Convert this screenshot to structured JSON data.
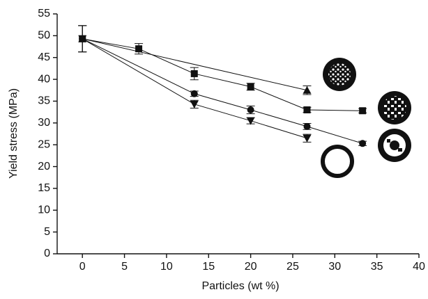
{
  "chart_data": {
    "type": "line",
    "xlabel": "Particles (wt %)",
    "ylabel": "Yield stress (MPa)",
    "xlim": [
      -3,
      40
    ],
    "ylim": [
      0,
      55
    ],
    "xticks": [
      0,
      5,
      10,
      15,
      20,
      25,
      30,
      35,
      40
    ],
    "yticks": [
      0,
      5,
      10,
      15,
      20,
      25,
      30,
      35,
      40,
      45,
      50,
      55
    ],
    "series": [
      {
        "marker": "triangle-up",
        "color": "#111111",
        "x": [
          0,
          26.7
        ],
        "values": [
          49.3,
          37.5
        ],
        "errors": [
          3,
          1
        ]
      },
      {
        "marker": "square",
        "color": "#111111",
        "x": [
          0,
          6.7,
          13.3,
          20,
          26.7,
          33.3
        ],
        "values": [
          49.3,
          47,
          41.3,
          38.3,
          33,
          32.8
        ],
        "errors": [
          3,
          1.2,
          1.4,
          0.8,
          0.6,
          0.5
        ]
      },
      {
        "marker": "circle",
        "color": "#111111",
        "x": [
          0,
          13.3,
          20,
          26.7,
          33.3
        ],
        "values": [
          49.3,
          36.7,
          33,
          29.2,
          25.3
        ],
        "errors": [
          3,
          0.6,
          0.9,
          0.7,
          0.5
        ]
      },
      {
        "marker": "triangle-down",
        "color": "#111111",
        "x": [
          0,
          13.3,
          20,
          26.7
        ],
        "values": [
          49.3,
          34.3,
          30.5,
          26.5
        ],
        "errors": [
          3,
          0.9,
          0.7,
          0.9
        ]
      }
    ]
  }
}
